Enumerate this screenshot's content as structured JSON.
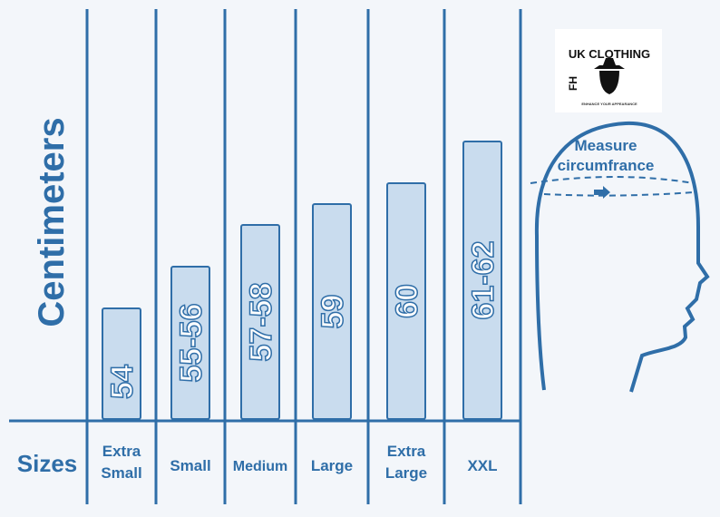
{
  "chart_data": {
    "type": "bar",
    "ylabel": "Centimeters",
    "xlabel": "Sizes",
    "categories": [
      [
        "Extra",
        "Small"
      ],
      [
        "Small"
      ],
      [
        "Medium"
      ],
      [
        "Large"
      ],
      [
        "Extra",
        "Large"
      ],
      [
        "XXL"
      ]
    ],
    "value_labels": [
      "54",
      "55-56",
      "57-58",
      "59",
      "60",
      "61-62"
    ],
    "values": [
      [
        54,
        54
      ],
      [
        55,
        56
      ],
      [
        57,
        58
      ],
      [
        59,
        59
      ],
      [
        60,
        60
      ],
      [
        61,
        62
      ]
    ]
  },
  "head": {
    "caption_line1": "Measure",
    "caption_line2": "circumfrance"
  },
  "logo": {
    "text": "FH UK CLOTHING",
    "tagline": "ENHANCE YOUR APPEARANCE"
  },
  "colors": {
    "accent": "#2f6ea8",
    "bar_fill": "#c9dcee",
    "background": "#f3f6fa"
  }
}
